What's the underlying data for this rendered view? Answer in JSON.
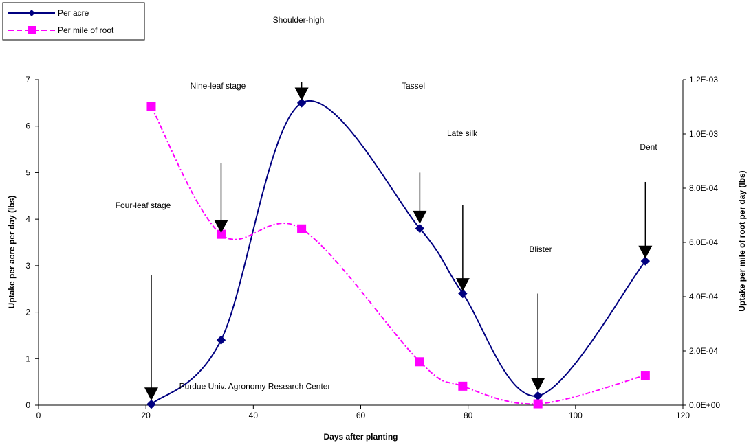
{
  "chart_data": {
    "type": "line",
    "title": "",
    "xlabel": "Days after planting",
    "ylabel": "Uptake per acre per day (lbs)",
    "y2label": "Uptake per mile of root per day (lbs)",
    "xlim": [
      0,
      120
    ],
    "ylim": [
      0,
      7
    ],
    "y2lim": [
      0,
      0.0012
    ],
    "xticks": [
      "0",
      "20",
      "40",
      "60",
      "80",
      "100",
      "120"
    ],
    "yticks": [
      "0",
      "1",
      "2",
      "3",
      "4",
      "5",
      "6",
      "7"
    ],
    "y2ticks": [
      "0.0E+00",
      "2.0E-04",
      "4.0E-04",
      "6.0E-04",
      "8.0E-04",
      "1.0E-03",
      "1.2E-03"
    ],
    "grid": false,
    "legend_position": "top-left",
    "series": [
      {
        "name": "Per acre",
        "axis": "left",
        "color": "#000080",
        "marker": "diamond",
        "line_style": "solid",
        "x": [
          21,
          34,
          49,
          71,
          79,
          93,
          113
        ],
        "values": [
          0.02,
          1.4,
          6.5,
          3.8,
          2.4,
          0.2,
          3.1
        ]
      },
      {
        "name": "Per mile of root",
        "axis": "right",
        "color": "#FF00FF",
        "marker": "square",
        "line_style": "dash-dot",
        "x": [
          21,
          34,
          49,
          71,
          79,
          93,
          113
        ],
        "values": [
          0.0011,
          0.00063,
          0.00065,
          0.00016,
          7e-05,
          5e-06,
          0.00011
        ]
      }
    ],
    "annotations": [
      {
        "text": "Four-leaf stage",
        "x": 21,
        "arrow_top": 2.8,
        "arrow_bottom": 0.1
      },
      {
        "text": "Nine-leaf stage",
        "x": 34,
        "arrow_top": 5.2,
        "arrow_bottom": 3.7
      },
      {
        "text": "Shoulder-high",
        "x": 49,
        "arrow_top": 6.95,
        "arrow_bottom": 6.55
      },
      {
        "text": "Tassel",
        "x": 71,
        "arrow_top": 5.0,
        "arrow_bottom": 3.9
      },
      {
        "text": "Late silk",
        "x": 79,
        "arrow_top": 4.3,
        "arrow_bottom": 2.45
      },
      {
        "text": "Blister",
        "x": 93,
        "arrow_top": 2.4,
        "arrow_bottom": 0.3
      },
      {
        "text": "Dent",
        "x": 113,
        "arrow_top": 4.8,
        "arrow_bottom": 3.15
      }
    ],
    "footnote": "Purdue Univ. Agronomy Research Center"
  }
}
